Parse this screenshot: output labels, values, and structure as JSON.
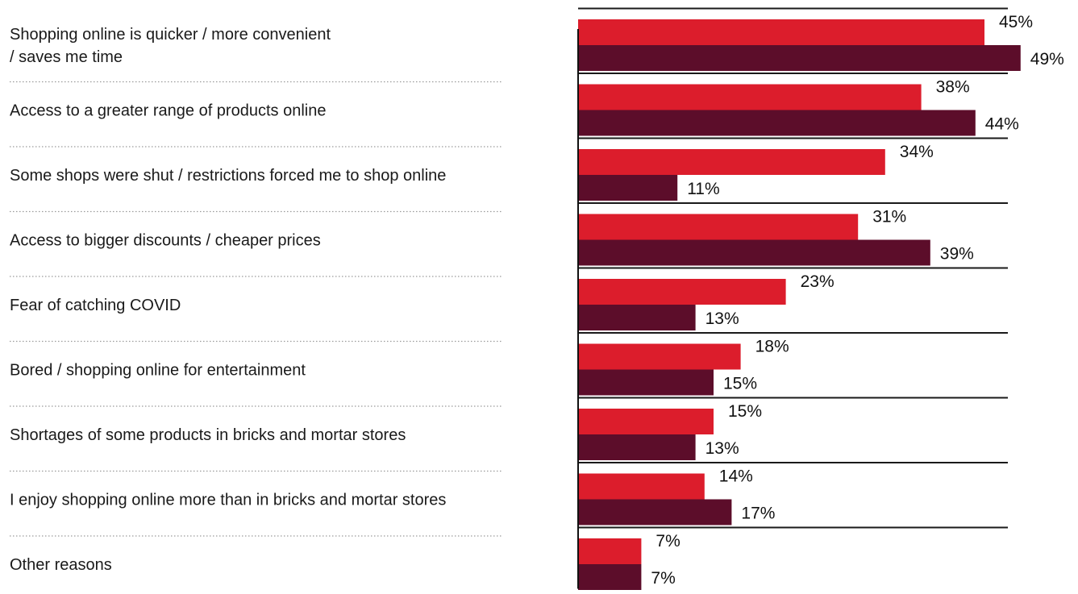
{
  "chart_data": {
    "type": "bar",
    "orientation": "horizontal",
    "title": "",
    "xlabel": "",
    "ylabel": "",
    "xlim": [
      0,
      50
    ],
    "grid": false,
    "legend": "none",
    "categories": [
      [
        "Shopping online is quicker / more convenient",
        "/ saves me time"
      ],
      [
        "Access to a greater range of products online"
      ],
      [
        "Some shops were shut / restrictions forced me to shop online"
      ],
      [
        "Access to bigger discounts / cheaper prices"
      ],
      [
        "Fear of catching COVID"
      ],
      [
        "Bored / shopping online for entertainment"
      ],
      [
        "Shortages of some products in bricks and mortar stores"
      ],
      [
        "I enjoy shopping online more than in bricks and mortar stores"
      ],
      [
        "Other reasons"
      ]
    ],
    "series": [
      {
        "color": "#dc1d2c",
        "values": [
          45,
          38,
          34,
          31,
          23,
          18,
          15,
          14,
          7
        ]
      },
      {
        "color": "#5c0d2a",
        "values": [
          49,
          44,
          11,
          39,
          13,
          15,
          13,
          17,
          7
        ]
      }
    ],
    "value_suffix": "%"
  }
}
